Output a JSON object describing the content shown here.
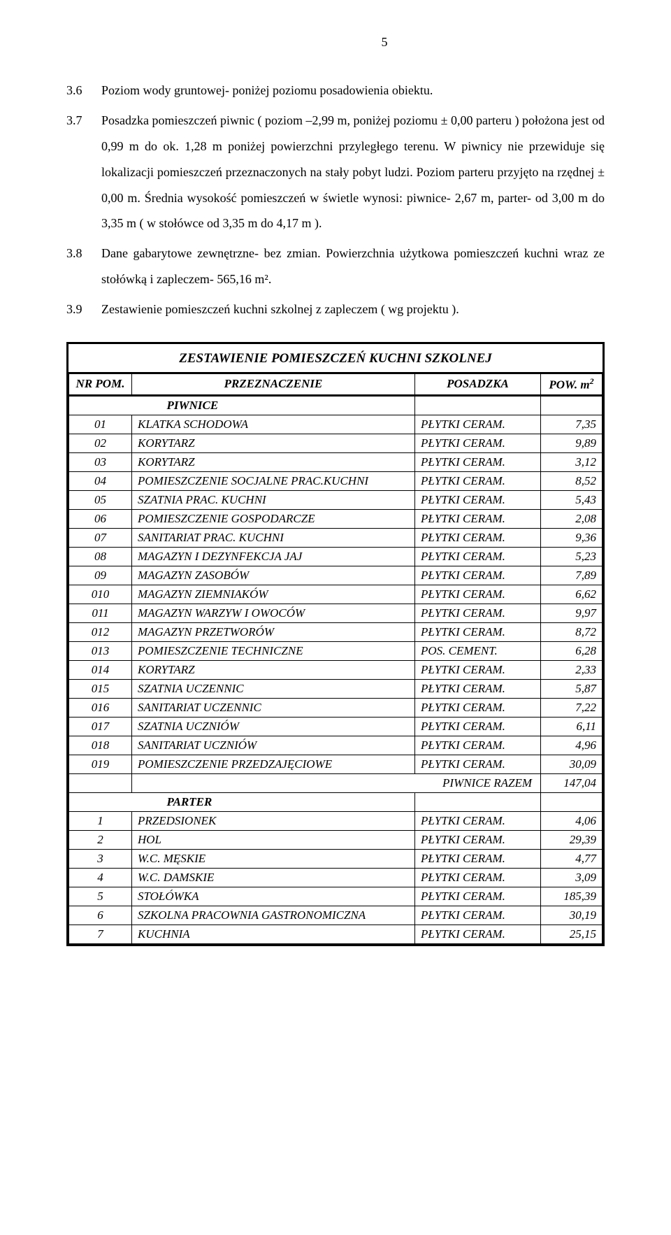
{
  "pageNumber": "5",
  "sections": [
    {
      "num": "3.6",
      "text": "Poziom wody gruntowej- poniżej poziomu posadowienia obiektu."
    },
    {
      "num": "3.7",
      "text": "Posadzka pomieszczeń piwnic ( poziom –2,99 m, poniżej poziomu ± 0,00 parteru ) położona jest od 0,99 m do ok. 1,28 m poniżej powierzchni przyległego terenu. W piwnicy nie przewiduje się lokalizacji pomieszczeń przeznaczonych na stały pobyt ludzi. Poziom parteru przyjęto na rzędnej ± 0,00 m. Średnia wysokość pomieszczeń w świetle wynosi: piwnice- 2,67 m, parter- od 3,00 m do 3,35 m ( w stołówce od 3,35 m do 4,17 m )."
    },
    {
      "num": "3.8",
      "text": "Dane gabarytowe zewnętrzne- bez zmian. Powierzchnia użytkowa pomieszczeń kuchni wraz ze stołówką i zapleczem- 565,16 m²."
    },
    {
      "num": "3.9",
      "text": "Zestawienie pomieszczeń kuchni szkolnej z zapleczem ( wg projektu )."
    }
  ],
  "tableTitle": "ZESTAWIENIE POMIESZCZEŃ KUCHNI SZKOLNEJ",
  "headers": {
    "nr": "NR POM.",
    "prz": "PRZEZNACZENIE",
    "pos": "POSADZKA",
    "pow": "POW. m"
  },
  "group1": "PIWNICE",
  "rows1": [
    {
      "nr": "01",
      "prz": "KLATKA SCHODOWA",
      "pos": "PŁYTKI CERAM.",
      "pow": "7,35"
    },
    {
      "nr": "02",
      "prz": "KORYTARZ",
      "pos": "PŁYTKI CERAM.",
      "pow": "9,89"
    },
    {
      "nr": "03",
      "prz": "KORYTARZ",
      "pos": "PŁYTKI CERAM.",
      "pow": "3,12"
    },
    {
      "nr": "04",
      "prz": "POMIESZCZENIE SOCJALNE PRAC.KUCHNI",
      "pos": "PŁYTKI CERAM.",
      "pow": "8,52"
    },
    {
      "nr": "05",
      "prz": "SZATNIA PRAC. KUCHNI",
      "pos": "PŁYTKI CERAM.",
      "pow": "5,43"
    },
    {
      "nr": "06",
      "prz": "POMIESZCZENIE GOSPODARCZE",
      "pos": "PŁYTKI CERAM.",
      "pow": "2,08"
    },
    {
      "nr": "07",
      "prz": "SANITARIAT PRAC. KUCHNI",
      "pos": "PŁYTKI CERAM.",
      "pow": "9,36"
    },
    {
      "nr": "08",
      "prz": "MAGAZYN I DEZYNFEKCJA JAJ",
      "pos": "PŁYTKI CERAM.",
      "pow": "5,23"
    },
    {
      "nr": "09",
      "prz": "MAGAZYN ZASOBÓW",
      "pos": "PŁYTKI CERAM.",
      "pow": "7,89"
    },
    {
      "nr": "010",
      "prz": "MAGAZYN ZIEMNIAKÓW",
      "pos": "PŁYTKI CERAM.",
      "pow": "6,62"
    },
    {
      "nr": "011",
      "prz": "MAGAZYN WARZYW I OWOCÓW",
      "pos": "PŁYTKI CERAM.",
      "pow": "9,97"
    },
    {
      "nr": "012",
      "prz": "MAGAZYN PRZETWORÓW",
      "pos": "PŁYTKI CERAM.",
      "pow": "8,72"
    },
    {
      "nr": "013",
      "prz": "POMIESZCZENIE TECHNICZNE",
      "pos": "POS. CEMENT.",
      "pow": "6,28"
    },
    {
      "nr": "014",
      "prz": "KORYTARZ",
      "pos": "PŁYTKI CERAM.",
      "pow": "2,33"
    },
    {
      "nr": "015",
      "prz": "SZATNIA UCZENNIC",
      "pos": "PŁYTKI CERAM.",
      "pow": "5,87"
    },
    {
      "nr": "016",
      "prz": "SANITARIAT UCZENNIC",
      "pos": "PŁYTKI CERAM.",
      "pow": "7,22"
    },
    {
      "nr": "017",
      "prz": "SZATNIA UCZNIÓW",
      "pos": "PŁYTKI CERAM.",
      "pow": "6,11"
    },
    {
      "nr": "018",
      "prz": "SANITARIAT UCZNIÓW",
      "pos": "PŁYTKI CERAM.",
      "pow": "4,96"
    },
    {
      "nr": "019",
      "prz": "POMIESZCZENIE PRZEDZAJĘCIOWE",
      "pos": "PŁYTKI CERAM.",
      "pow": "30,09"
    }
  ],
  "subtotal1Label": "PIWNICE RAZEM",
  "subtotal1": "147,04",
  "group2": "PARTER",
  "rows2": [
    {
      "nr": "1",
      "prz": "PRZEDSIONEK",
      "pos": "PŁYTKI CERAM.",
      "pow": "4,06"
    },
    {
      "nr": "2",
      "prz": "HOL",
      "pos": "PŁYTKI CERAM.",
      "pow": "29,39"
    },
    {
      "nr": "3",
      "prz": "W.C. MĘSKIE",
      "pos": "PŁYTKI CERAM.",
      "pow": "4,77"
    },
    {
      "nr": "4",
      "prz": "W.C. DAMSKIE",
      "pos": "PŁYTKI CERAM.",
      "pow": "3,09"
    },
    {
      "nr": "5",
      "prz": "STOŁÓWKA",
      "pos": "PŁYTKI CERAM.",
      "pow": "185,39"
    },
    {
      "nr": "6",
      "prz": "SZKOLNA PRACOWNIA GASTRONOMICZNA",
      "pos": "PŁYTKI CERAM.",
      "pow": "30,19"
    },
    {
      "nr": "7",
      "prz": "KUCHNIA",
      "pos": "PŁYTKI CERAM.",
      "pow": "25,15"
    }
  ]
}
